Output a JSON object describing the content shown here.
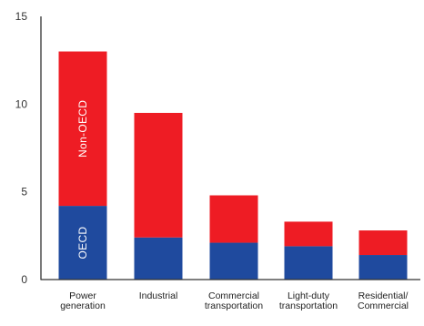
{
  "chart_data": {
    "type": "bar",
    "stacked": true,
    "categories": [
      [
        "Power",
        "generation"
      ],
      [
        "Industrial"
      ],
      [
        "Commercial",
        "transportation"
      ],
      [
        "Light-duty",
        "transportation"
      ],
      [
        "Residential/",
        "Commercial"
      ]
    ],
    "series": [
      {
        "name": "OECD",
        "color": "#1f4a9e",
        "values": [
          4.2,
          2.4,
          2.1,
          1.9,
          1.4
        ]
      },
      {
        "name": "Non-OECD",
        "color": "#ee1c24",
        "values": [
          8.8,
          7.1,
          2.7,
          1.4,
          1.4
        ]
      }
    ],
    "ylim": [
      0,
      15
    ],
    "yticks": [
      0,
      5,
      10,
      15
    ],
    "xlabel": "",
    "ylabel": "",
    "title": "",
    "grid": false,
    "legend": "inline labels on first bar"
  }
}
